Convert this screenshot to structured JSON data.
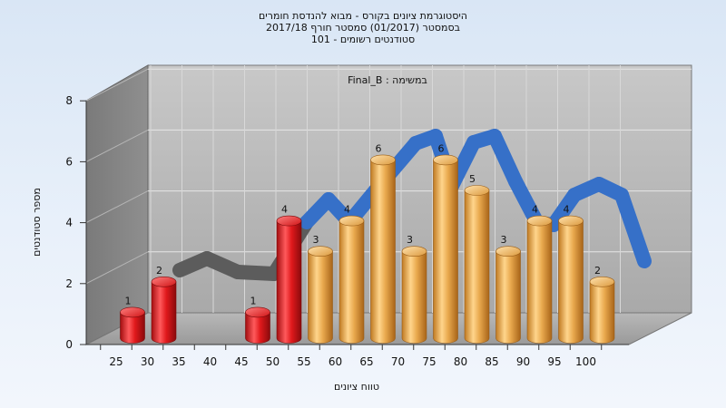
{
  "chart_data": {
    "type": "bar",
    "title_lines": [
      "היסטוגרמת ציונים בקורס - מבוא להנדסת חומרים",
      "בסמסטר  (01/2017)  סמסטר חורף 2017/18",
      "סטודנטים רשומים - 101"
    ],
    "legend_label": "Final_B : במשימה",
    "xlabel": "טווח ציונים",
    "ylabel": "מספר סטודנטים",
    "ylim": [
      0,
      8
    ],
    "yticks": [
      0,
      2,
      4,
      6,
      8
    ],
    "grid": true,
    "categories": [
      "25",
      "30",
      "35",
      "40",
      "45",
      "50",
      "55",
      "60",
      "65",
      "70",
      "75",
      "80",
      "85",
      "90",
      "95",
      "100"
    ],
    "values": [
      1,
      2,
      0,
      0,
      1,
      4,
      3,
      4,
      6,
      3,
      6,
      5,
      3,
      4,
      4,
      2
    ],
    "colors": {
      "fail": "#e0191c",
      "pass": "#e9a94e",
      "curve": "#3670c8"
    }
  }
}
